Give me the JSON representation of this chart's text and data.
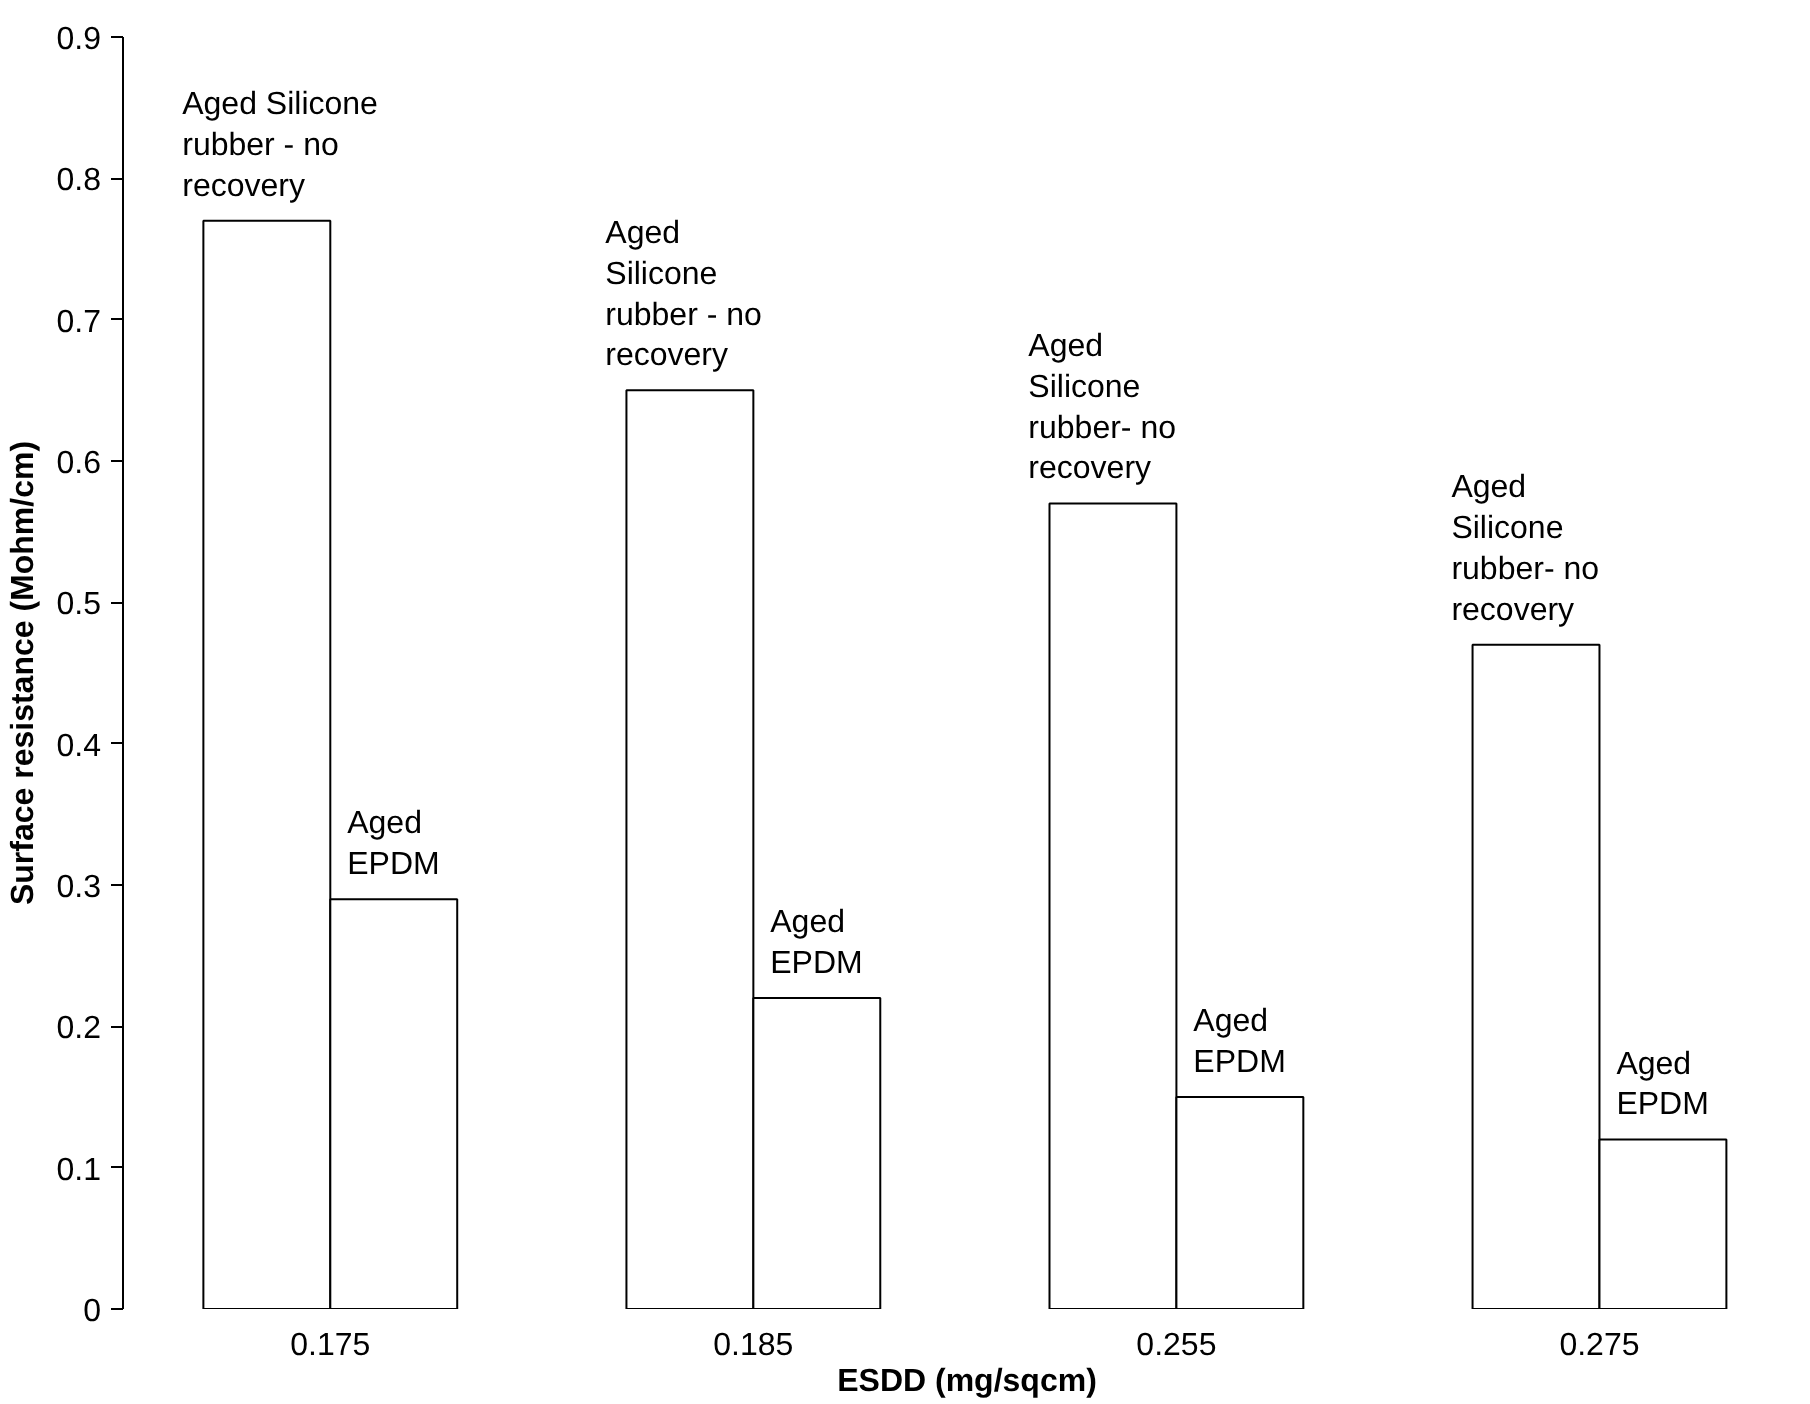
{
  "chart_data": {
    "type": "bar",
    "categories": [
      "0.175",
      "0.185",
      "0.255",
      "0.275"
    ],
    "series": [
      {
        "color": "#ffffff",
        "values": [
          0.77,
          0.65,
          0.57,
          0.47
        ]
      },
      {
        "color": "#ffffff",
        "values": [
          0.29,
          0.22,
          0.15,
          0.12
        ]
      }
    ],
    "xlabel": "ESDD (mg/sqcm)",
    "ylabel": "Surface resistance (Mohm/cm)",
    "ylim": [
      0,
      0.9
    ],
    "yticks": [
      0,
      0.1,
      0.2,
      0.3,
      0.4,
      0.5,
      0.6,
      0.7,
      0.8,
      0.9
    ],
    "grid": false,
    "annotations": [
      {
        "text": "Aged Silicone\nrubber - no\nrecovery",
        "x": "0.175",
        "y": 0.77
      },
      {
        "text": "Aged\nEPDM",
        "x": "0.175",
        "y": 0.29
      },
      {
        "text": "Aged\nSilicone\nrubber - no\nrecovery",
        "x": "0.185",
        "y": 0.65
      },
      {
        "text": "Aged\nEPDM",
        "x": "0.185",
        "y": 0.22
      },
      {
        "text": "Aged\nSilicone\nrubber- no\nrecovery",
        "x": "0.255",
        "y": 0.57
      },
      {
        "text": "Aged\nEPDM",
        "x": "0.255",
        "y": 0.15
      },
      {
        "text": "Aged\nSilicone\nrubber- no\nrecovery",
        "x": "0.275",
        "y": 0.47
      },
      {
        "text": "Aged\nEPDM",
        "x": "0.275",
        "y": 0.12
      }
    ]
  }
}
